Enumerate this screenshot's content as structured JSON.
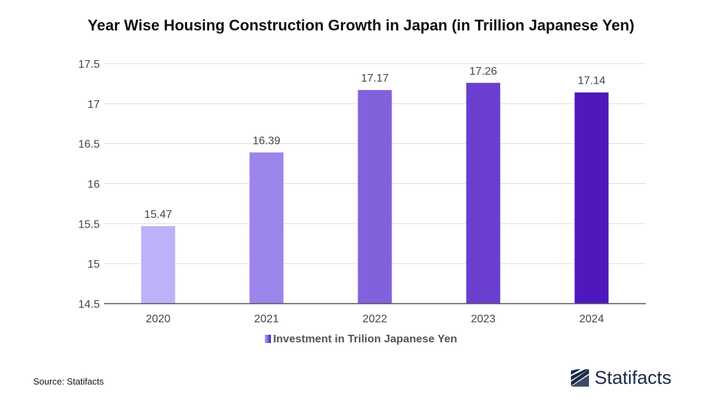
{
  "title": "Year Wise Housing Construction Growth in Japan (in Trillion Japanese Yen)",
  "source": "Source: Statifacts",
  "brand": "Statifacts",
  "colors": {
    "bars": [
      "#bdb2fa",
      "#9c85ea",
      "#8361dc",
      "#6a3fd0",
      "#4e18bd"
    ],
    "grid": "#dddddd",
    "axis": "#555555",
    "brand": "#1c2a4a"
  },
  "chart_data": {
    "type": "bar",
    "title": "Year Wise Housing Construction Growth in Japan (in Trillion Japanese Yen)",
    "categories": [
      "2020",
      "2021",
      "2022",
      "2023",
      "2024"
    ],
    "series": [
      {
        "name": "Investment in Trilion Japanese Yen",
        "values": [
          15.47,
          16.39,
          17.17,
          17.26,
          17.14
        ]
      }
    ],
    "value_labels": [
      "15.47",
      "16.39",
      "17.17",
      "17.26",
      "17.14"
    ],
    "yticks": [
      "14.5",
      "15",
      "15.5",
      "16",
      "16.5",
      "17",
      "17.5"
    ],
    "ylim": [
      14.5,
      17.5
    ],
    "grid": true,
    "legend_position": "bottom-center"
  }
}
